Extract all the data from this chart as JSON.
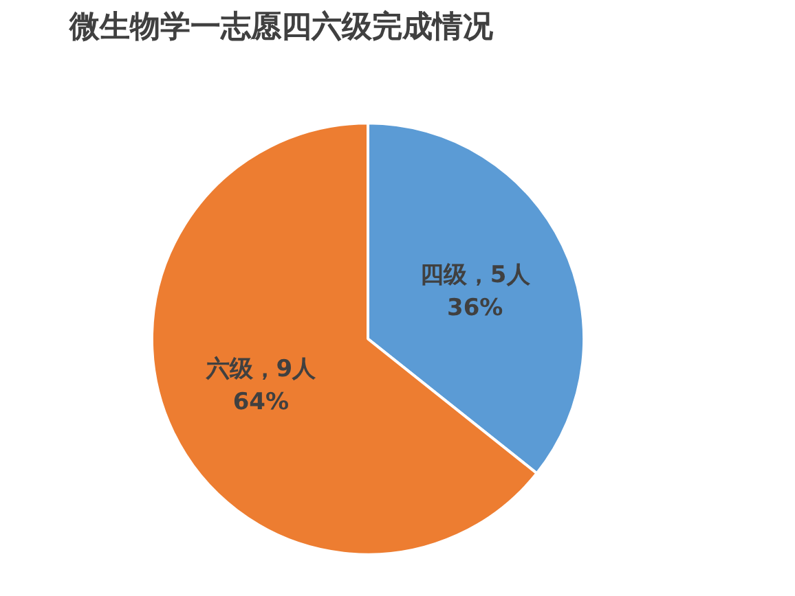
{
  "chart_data": {
    "type": "pie",
    "title": "微生物学一志愿四六级完成情况",
    "categories": [
      "四级",
      "六级"
    ],
    "values": [
      5,
      9
    ],
    "colors": [
      "#5b9bd5",
      "#ed7d31"
    ],
    "value_labels": [
      "，5人\n36%",
      "，9人\n64%"
    ],
    "legend": false
  }
}
